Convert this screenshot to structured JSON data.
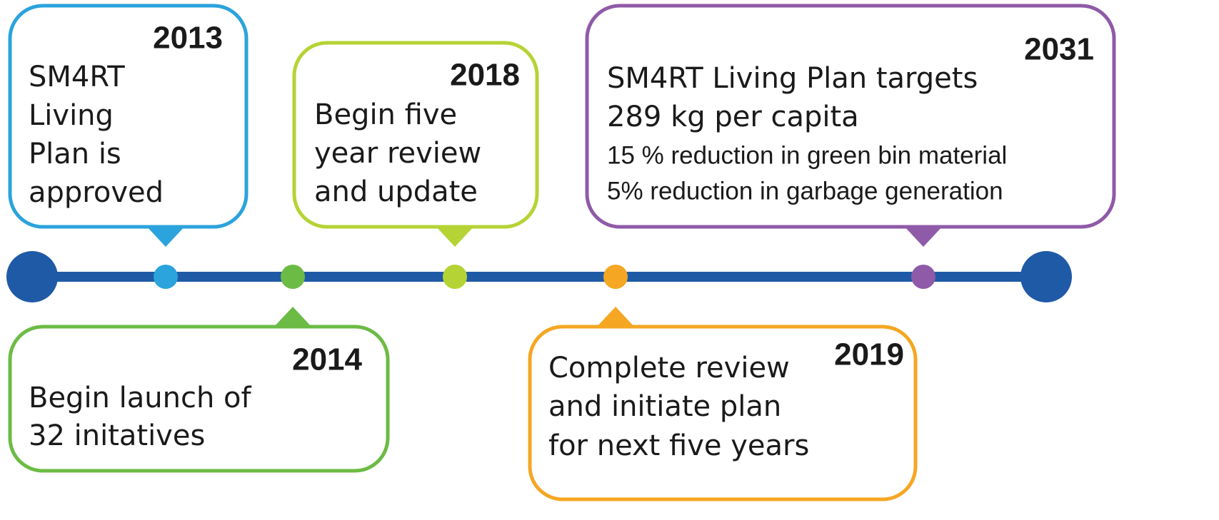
{
  "timeline": {
    "axis_color": "#1f5aa6",
    "events": [
      {
        "year": "2013",
        "color": "#2ba3dc",
        "lines": [
          "SM4RT",
          "Living",
          "Plan is",
          "approved"
        ]
      },
      {
        "year": "2014",
        "color": "#6cbb45",
        "lines": [
          "Begin launch of",
          "32 initatives"
        ]
      },
      {
        "year": "2018",
        "color": "#b5d334",
        "lines": [
          "Begin five",
          "year review",
          "and update"
        ]
      },
      {
        "year": "2019",
        "color": "#f5a623",
        "lines": [
          "Complete review",
          "and initiate plan",
          "for next five years"
        ]
      },
      {
        "year": "2031",
        "color": "#8f5aa8",
        "lines": [
          "SM4RT Living Plan targets",
          "289 kg per capita"
        ],
        "sublines": [
          "15 % reduction in green bin material",
          "5% reduction in garbage generation"
        ]
      }
    ]
  }
}
